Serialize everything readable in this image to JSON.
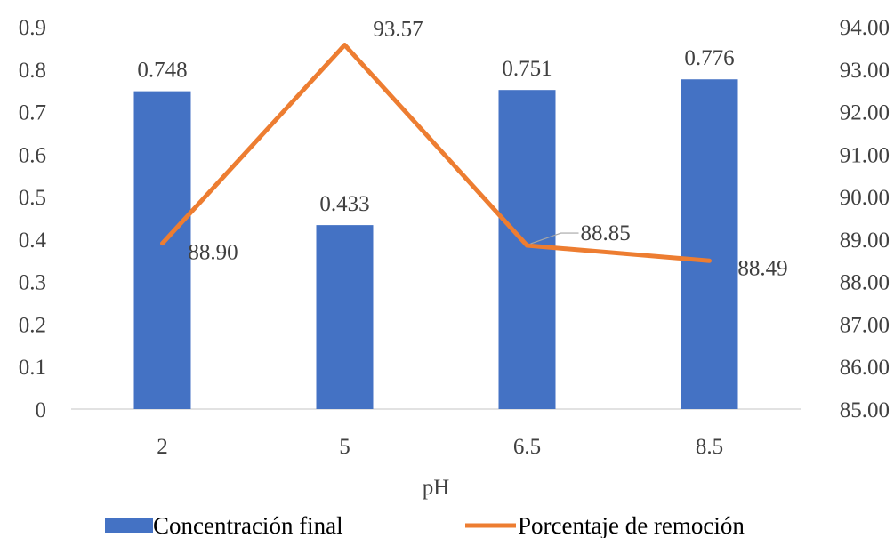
{
  "chart_data": {
    "type": "bar",
    "categories": [
      "2",
      "5",
      "6.5",
      "8.5"
    ],
    "xlabel": "pH",
    "series": [
      {
        "name": "Concentración final",
        "kind": "bar",
        "axis": "left",
        "color": "#4472C4",
        "values": [
          0.748,
          0.433,
          0.751,
          0.776
        ],
        "labels": [
          "0.748",
          "0.433",
          "0.751",
          "0.776"
        ]
      },
      {
        "name": "Porcentaje de remoción",
        "kind": "line",
        "axis": "right",
        "color": "#ED7D31",
        "values": [
          88.9,
          93.57,
          88.85,
          88.49
        ],
        "labels": [
          "88.90",
          "93.57",
          "88.85",
          "88.49"
        ]
      }
    ],
    "y_left": {
      "ylim": [
        0,
        0.9
      ],
      "ticks": [
        "0",
        "0.1",
        "0.2",
        "0.3",
        "0.4",
        "0.5",
        "0.6",
        "0.7",
        "0.8",
        "0.9"
      ]
    },
    "y_right": {
      "ylim": [
        85,
        94
      ],
      "ticks": [
        "85.00",
        "86.00",
        "87.00",
        "88.00",
        "89.00",
        "90.00",
        "91.00",
        "92.00",
        "93.00",
        "94.00"
      ]
    },
    "grid": false,
    "legend": "bottom"
  }
}
